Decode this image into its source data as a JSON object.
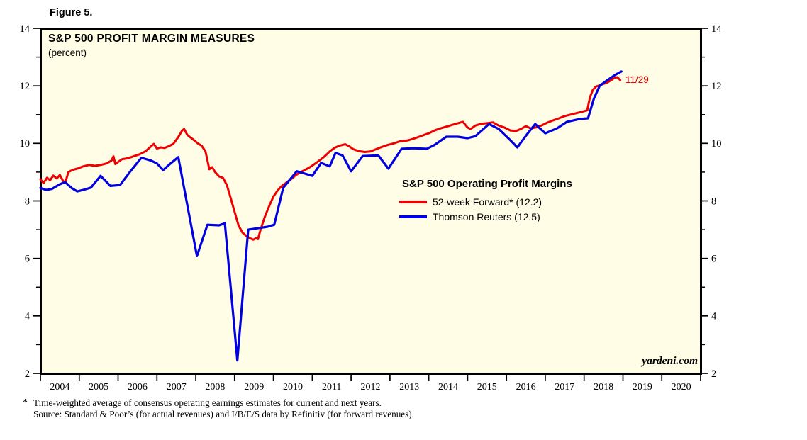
{
  "figure_label": "Figure 5.",
  "header": {
    "title": "S&P 500 PROFIT MARGIN MEASURES",
    "subtitle": "(percent)"
  },
  "legend": {
    "title": "S&P 500 Operating Profit Margins",
    "items": [
      {
        "label": "52-week Forward* (12.2)"
      },
      {
        "label": "Thomson Reuters (12.5)"
      }
    ]
  },
  "annotation": {
    "label": "11/29",
    "color": "#ee0000"
  },
  "watermark": "yardeni.com",
  "footnote": {
    "marker": "*",
    "line1": "Time-weighted average of consensus operating earnings estimates for current and next years.",
    "line2": "Source: Standard & Poor’s (for actual revenues) and I/B/E/S data by Refinitiv (for forward revenues)."
  },
  "chart_data": {
    "type": "line",
    "title": "S&P 500 PROFIT MARGIN MEASURES",
    "ylabel": "percent",
    "x_range": [
      2004,
      2021
    ],
    "ylim": [
      2,
      14
    ],
    "y_major_ticks": [
      2,
      4,
      6,
      8,
      10,
      12,
      14
    ],
    "y_minor_ticks": [
      3,
      5,
      7,
      9,
      11,
      13
    ],
    "x_year_labels": [
      2004,
      2005,
      2006,
      2007,
      2008,
      2009,
      2010,
      2011,
      2012,
      2013,
      2014,
      2015,
      2016,
      2017,
      2018,
      2019,
      2020
    ],
    "grid": false,
    "legend_position": "center-right",
    "plot_background": "#fffde6",
    "series": [
      {
        "name": "52-week Forward* (12.2)",
        "color": "#ee0000",
        "width": 3,
        "points": [
          [
            2004.0,
            8.75
          ],
          [
            2004.08,
            8.62
          ],
          [
            2004.17,
            8.8
          ],
          [
            2004.25,
            8.72
          ],
          [
            2004.33,
            8.88
          ],
          [
            2004.42,
            8.78
          ],
          [
            2004.5,
            8.9
          ],
          [
            2004.58,
            8.7
          ],
          [
            2004.64,
            8.62
          ],
          [
            2004.72,
            9.0
          ],
          [
            2004.83,
            9.08
          ],
          [
            2004.95,
            9.12
          ],
          [
            2005.1,
            9.2
          ],
          [
            2005.25,
            9.25
          ],
          [
            2005.4,
            9.22
          ],
          [
            2005.55,
            9.25
          ],
          [
            2005.7,
            9.3
          ],
          [
            2005.83,
            9.4
          ],
          [
            2005.88,
            9.55
          ],
          [
            2005.93,
            9.28
          ],
          [
            2006.0,
            9.35
          ],
          [
            2006.1,
            9.45
          ],
          [
            2006.25,
            9.48
          ],
          [
            2006.4,
            9.55
          ],
          [
            2006.55,
            9.62
          ],
          [
            2006.7,
            9.72
          ],
          [
            2006.85,
            9.9
          ],
          [
            2006.92,
            9.98
          ],
          [
            2007.0,
            9.82
          ],
          [
            2007.1,
            9.86
          ],
          [
            2007.2,
            9.84
          ],
          [
            2007.3,
            9.9
          ],
          [
            2007.42,
            9.98
          ],
          [
            2007.55,
            10.22
          ],
          [
            2007.65,
            10.45
          ],
          [
            2007.7,
            10.5
          ],
          [
            2007.78,
            10.3
          ],
          [
            2007.85,
            10.22
          ],
          [
            2007.95,
            10.12
          ],
          [
            2008.05,
            10.0
          ],
          [
            2008.15,
            9.92
          ],
          [
            2008.25,
            9.72
          ],
          [
            2008.35,
            9.1
          ],
          [
            2008.42,
            9.17
          ],
          [
            2008.5,
            9.0
          ],
          [
            2008.6,
            8.85
          ],
          [
            2008.7,
            8.8
          ],
          [
            2008.8,
            8.55
          ],
          [
            2008.9,
            8.1
          ],
          [
            2009.0,
            7.62
          ],
          [
            2009.1,
            7.15
          ],
          [
            2009.2,
            6.9
          ],
          [
            2009.3,
            6.78
          ],
          [
            2009.4,
            6.7
          ],
          [
            2009.48,
            6.65
          ],
          [
            2009.55,
            6.7
          ],
          [
            2009.6,
            6.67
          ],
          [
            2009.68,
            7.05
          ],
          [
            2009.78,
            7.45
          ],
          [
            2009.9,
            7.85
          ],
          [
            2010.0,
            8.15
          ],
          [
            2010.1,
            8.35
          ],
          [
            2010.2,
            8.5
          ],
          [
            2010.32,
            8.62
          ],
          [
            2010.45,
            8.75
          ],
          [
            2010.58,
            8.9
          ],
          [
            2010.7,
            9.0
          ],
          [
            2010.82,
            9.08
          ],
          [
            2010.95,
            9.18
          ],
          [
            2011.08,
            9.3
          ],
          [
            2011.2,
            9.42
          ],
          [
            2011.32,
            9.55
          ],
          [
            2011.45,
            9.72
          ],
          [
            2011.58,
            9.85
          ],
          [
            2011.7,
            9.92
          ],
          [
            2011.85,
            9.97
          ],
          [
            2011.95,
            9.9
          ],
          [
            2012.05,
            9.8
          ],
          [
            2012.2,
            9.73
          ],
          [
            2012.35,
            9.7
          ],
          [
            2012.5,
            9.72
          ],
          [
            2012.65,
            9.8
          ],
          [
            2012.8,
            9.88
          ],
          [
            2012.95,
            9.95
          ],
          [
            2013.1,
            10.0
          ],
          [
            2013.25,
            10.07
          ],
          [
            2013.45,
            10.1
          ],
          [
            2013.65,
            10.18
          ],
          [
            2013.85,
            10.28
          ],
          [
            2014.0,
            10.35
          ],
          [
            2014.15,
            10.45
          ],
          [
            2014.3,
            10.52
          ],
          [
            2014.5,
            10.6
          ],
          [
            2014.7,
            10.68
          ],
          [
            2014.88,
            10.75
          ],
          [
            2015.0,
            10.55
          ],
          [
            2015.08,
            10.5
          ],
          [
            2015.2,
            10.62
          ],
          [
            2015.35,
            10.68
          ],
          [
            2015.5,
            10.7
          ],
          [
            2015.65,
            10.73
          ],
          [
            2015.8,
            10.62
          ],
          [
            2015.95,
            10.55
          ],
          [
            2016.1,
            10.45
          ],
          [
            2016.25,
            10.43
          ],
          [
            2016.4,
            10.52
          ],
          [
            2016.5,
            10.6
          ],
          [
            2016.62,
            10.52
          ],
          [
            2016.75,
            10.55
          ],
          [
            2016.9,
            10.62
          ],
          [
            2017.05,
            10.72
          ],
          [
            2017.2,
            10.8
          ],
          [
            2017.35,
            10.87
          ],
          [
            2017.5,
            10.95
          ],
          [
            2017.65,
            11.0
          ],
          [
            2017.8,
            11.05
          ],
          [
            2017.95,
            11.1
          ],
          [
            2018.08,
            11.15
          ],
          [
            2018.15,
            11.6
          ],
          [
            2018.22,
            11.85
          ],
          [
            2018.3,
            11.97
          ],
          [
            2018.4,
            12.02
          ],
          [
            2018.5,
            12.07
          ],
          [
            2018.6,
            12.12
          ],
          [
            2018.7,
            12.2
          ],
          [
            2018.78,
            12.28
          ],
          [
            2018.85,
            12.3
          ],
          [
            2018.9,
            12.24
          ],
          [
            2018.93,
            12.2
          ]
        ]
      },
      {
        "name": "Thomson Reuters (12.5)",
        "color": "#0000e0",
        "width": 3.2,
        "points": [
          [
            2004.0,
            8.45
          ],
          [
            2004.15,
            8.38
          ],
          [
            2004.3,
            8.42
          ],
          [
            2004.5,
            8.58
          ],
          [
            2004.64,
            8.65
          ],
          [
            2004.8,
            8.45
          ],
          [
            2004.95,
            8.33
          ],
          [
            2005.1,
            8.38
          ],
          [
            2005.3,
            8.46
          ],
          [
            2005.55,
            8.87
          ],
          [
            2005.8,
            8.52
          ],
          [
            2006.05,
            8.55
          ],
          [
            2006.3,
            9.0
          ],
          [
            2006.6,
            9.5
          ],
          [
            2006.85,
            9.4
          ],
          [
            2007.0,
            9.3
          ],
          [
            2007.16,
            9.07
          ],
          [
            2007.35,
            9.3
          ],
          [
            2007.55,
            9.52
          ],
          [
            2008.03,
            6.08
          ],
          [
            2008.3,
            7.17
          ],
          [
            2008.6,
            7.15
          ],
          [
            2008.75,
            7.22
          ],
          [
            2009.07,
            2.45
          ],
          [
            2009.35,
            7.0
          ],
          [
            2009.6,
            7.05
          ],
          [
            2009.85,
            7.1
          ],
          [
            2010.02,
            7.17
          ],
          [
            2010.25,
            8.45
          ],
          [
            2010.6,
            9.03
          ],
          [
            2010.8,
            8.95
          ],
          [
            2011.0,
            8.87
          ],
          [
            2011.23,
            9.32
          ],
          [
            2011.45,
            9.2
          ],
          [
            2011.6,
            9.67
          ],
          [
            2011.78,
            9.58
          ],
          [
            2012.0,
            9.03
          ],
          [
            2012.3,
            9.56
          ],
          [
            2012.7,
            9.58
          ],
          [
            2012.96,
            9.12
          ],
          [
            2013.3,
            9.81
          ],
          [
            2013.6,
            9.83
          ],
          [
            2013.95,
            9.81
          ],
          [
            2014.15,
            9.95
          ],
          [
            2014.45,
            10.23
          ],
          [
            2014.75,
            10.23
          ],
          [
            2015.0,
            10.18
          ],
          [
            2015.2,
            10.25
          ],
          [
            2015.55,
            10.67
          ],
          [
            2015.8,
            10.5
          ],
          [
            2016.1,
            10.11
          ],
          [
            2016.28,
            9.86
          ],
          [
            2016.55,
            10.35
          ],
          [
            2016.74,
            10.67
          ],
          [
            2017.0,
            10.35
          ],
          [
            2017.3,
            10.52
          ],
          [
            2017.56,
            10.75
          ],
          [
            2017.9,
            10.85
          ],
          [
            2018.1,
            10.87
          ],
          [
            2018.25,
            11.55
          ],
          [
            2018.4,
            12.0
          ],
          [
            2018.6,
            12.2
          ],
          [
            2018.8,
            12.38
          ],
          [
            2018.96,
            12.5
          ]
        ]
      }
    ]
  }
}
